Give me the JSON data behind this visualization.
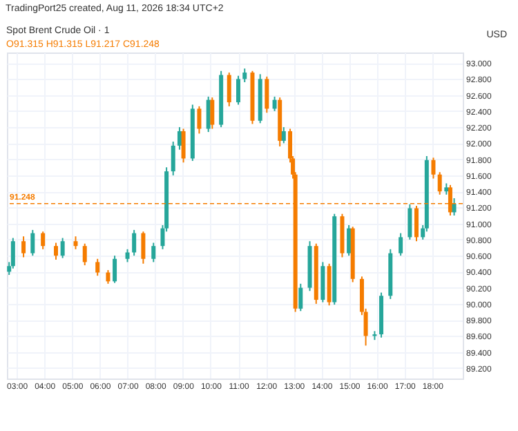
{
  "chart_data": {
    "type": "candlestick",
    "title": "Spot Brent Crude Oil · 1",
    "subtitle": "O91.315 H91.315 L91.217 C91.248",
    "annotations": [
      "TradingPort25 created, Aug 11, 2026 18:34 UTC+2",
      "USD"
    ],
    "x": [
      2.73,
      2.87,
      3.25,
      3.58,
      3.95,
      4.42,
      4.66,
      5.13,
      5.46,
      5.92,
      6.3,
      6.54,
      7.0,
      7.24,
      7.57,
      7.94,
      8.27,
      8.41,
      8.65,
      8.88,
      9.02,
      9.35,
      9.59,
      9.92,
      10.06,
      10.38,
      10.67,
      11.0,
      11.23,
      11.51,
      11.79,
      12.03,
      12.31,
      12.5,
      12.64,
      12.87,
      12.97,
      13.06,
      13.25,
      13.58,
      13.81,
      14.05,
      14.28,
      14.47,
      14.75,
      14.99,
      15.13,
      15.46,
      15.6,
      15.92,
      16.16,
      16.49,
      16.86,
      17.19,
      17.43,
      17.66,
      17.8,
      18.04,
      18.27,
      18.51,
      18.65,
      18.79
    ],
    "ohlc": [
      [
        90.4,
        90.52,
        90.36,
        90.47
      ],
      [
        90.47,
        90.82,
        90.44,
        90.78
      ],
      [
        90.78,
        90.84,
        90.58,
        90.63
      ],
      [
        90.63,
        90.92,
        90.6,
        90.88
      ],
      [
        90.88,
        90.9,
        90.68,
        90.72
      ],
      [
        90.72,
        90.76,
        90.55,
        90.6
      ],
      [
        90.6,
        90.82,
        90.57,
        90.78
      ],
      [
        90.78,
        90.84,
        90.68,
        90.72
      ],
      [
        90.72,
        90.75,
        90.48,
        90.52
      ],
      [
        90.52,
        90.56,
        90.35,
        90.39
      ],
      [
        90.39,
        90.42,
        90.25,
        90.28
      ],
      [
        90.28,
        90.6,
        90.26,
        90.56
      ],
      [
        90.56,
        90.68,
        90.52,
        90.64
      ],
      [
        90.64,
        90.92,
        90.6,
        90.88
      ],
      [
        90.88,
        90.9,
        90.5,
        90.56
      ],
      [
        90.56,
        90.76,
        90.52,
        90.72
      ],
      [
        90.72,
        90.98,
        90.68,
        90.94
      ],
      [
        90.94,
        91.7,
        90.9,
        91.65
      ],
      [
        91.65,
        92.02,
        91.6,
        91.97
      ],
      [
        91.97,
        92.2,
        91.92,
        92.15
      ],
      [
        92.15,
        92.18,
        91.76,
        91.81
      ],
      [
        91.81,
        92.48,
        91.78,
        92.43
      ],
      [
        92.43,
        92.46,
        92.12,
        92.18
      ],
      [
        92.18,
        92.58,
        92.14,
        92.54
      ],
      [
        92.54,
        92.57,
        92.18,
        92.23
      ],
      [
        92.23,
        92.9,
        92.2,
        92.85
      ],
      [
        92.85,
        92.88,
        92.46,
        92.51
      ],
      [
        92.51,
        92.84,
        92.48,
        92.8
      ],
      [
        92.8,
        92.93,
        92.76,
        92.88
      ],
      [
        92.88,
        92.9,
        92.24,
        92.28
      ],
      [
        92.28,
        92.86,
        92.25,
        92.8
      ],
      [
        92.8,
        92.83,
        92.38,
        92.43
      ],
      [
        92.43,
        92.58,
        92.4,
        92.54
      ],
      [
        92.54,
        92.57,
        91.96,
        92.03
      ],
      [
        92.03,
        92.2,
        92.0,
        92.15
      ],
      [
        92.15,
        92.18,
        91.76,
        91.81
      ],
      [
        91.81,
        91.84,
        91.56,
        91.61
      ],
      [
        91.61,
        91.64,
        89.9,
        89.94
      ],
      [
        89.94,
        90.25,
        89.91,
        90.2
      ],
      [
        90.2,
        90.78,
        90.16,
        90.72
      ],
      [
        90.72,
        90.75,
        90.0,
        90.05
      ],
      [
        90.05,
        90.52,
        90.02,
        90.47
      ],
      [
        90.47,
        90.5,
        89.98,
        90.02
      ],
      [
        90.02,
        91.12,
        89.99,
        91.09
      ],
      [
        91.09,
        91.12,
        90.58,
        90.63
      ],
      [
        90.63,
        90.98,
        90.6,
        90.94
      ],
      [
        90.94,
        90.96,
        90.27,
        90.31
      ],
      [
        90.31,
        90.34,
        89.86,
        89.9
      ],
      [
        89.9,
        89.94,
        89.48,
        89.6
      ],
      [
        89.6,
        89.66,
        89.55,
        89.62
      ],
      [
        89.62,
        90.14,
        89.58,
        90.1
      ],
      [
        90.1,
        90.68,
        90.06,
        90.63
      ],
      [
        90.63,
        90.88,
        90.6,
        90.83
      ],
      [
        90.83,
        91.24,
        90.8,
        91.19
      ],
      [
        91.19,
        91.22,
        90.78,
        90.83
      ],
      [
        90.83,
        90.98,
        90.8,
        90.94
      ],
      [
        90.94,
        91.84,
        90.9,
        91.79
      ],
      [
        91.79,
        91.82,
        91.56,
        91.61
      ],
      [
        91.61,
        91.64,
        91.36,
        91.4
      ],
      [
        91.4,
        91.5,
        91.36,
        91.45
      ],
      [
        91.45,
        91.48,
        91.1,
        91.14
      ],
      [
        91.14,
        91.315,
        91.1,
        91.248
      ]
    ],
    "colors": [
      "#26a69a",
      "#26a69a",
      "#f57c00",
      "#26a69a",
      "#f57c00",
      "#f57c00",
      "#26a69a",
      "#f57c00",
      "#f57c00",
      "#f57c00",
      "#f57c00",
      "#26a69a",
      "#26a69a",
      "#26a69a",
      "#f57c00",
      "#26a69a",
      "#26a69a",
      "#26a69a",
      "#26a69a",
      "#26a69a",
      "#f57c00",
      "#26a69a",
      "#f57c00",
      "#26a69a",
      "#f57c00",
      "#26a69a",
      "#f57c00",
      "#26a69a",
      "#26a69a",
      "#f57c00",
      "#26a69a",
      "#f57c00",
      "#26a69a",
      "#f57c00",
      "#26a69a",
      "#f57c00",
      "#f57c00",
      "#f57c00",
      "#26a69a",
      "#26a69a",
      "#f57c00",
      "#26a69a",
      "#f57c00",
      "#26a69a",
      "#f57c00",
      "#26a69a",
      "#f57c00",
      "#f57c00",
      "#f57c00",
      "#26a69a",
      "#26a69a",
      "#26a69a",
      "#26a69a",
      "#26a69a",
      "#f57c00",
      "#26a69a",
      "#26a69a",
      "#f57c00",
      "#f57c00",
      "#26a69a",
      "#f57c00",
      "#26a69a"
    ],
    "xlim": [
      2.65,
      19.1
    ],
    "xticks": [
      {
        "value": 3,
        "label": "03:00"
      },
      {
        "value": 4,
        "label": "04:00"
      },
      {
        "value": 5,
        "label": "05:00"
      },
      {
        "value": 6,
        "label": "06:00"
      },
      {
        "value": 7,
        "label": "07:00"
      },
      {
        "value": 8,
        "label": "08:00"
      },
      {
        "value": 9,
        "label": "09:00"
      },
      {
        "value": 10,
        "label": "10:00"
      },
      {
        "value": 11,
        "label": "11:00"
      },
      {
        "value": 12,
        "label": "12:00"
      },
      {
        "value": 13,
        "label": "13:00"
      },
      {
        "value": 14,
        "label": "14:00"
      },
      {
        "value": 15,
        "label": "15:00"
      },
      {
        "value": 16,
        "label": "16:00"
      },
      {
        "value": 17,
        "label": "17:00"
      },
      {
        "value": 18,
        "label": "18:00"
      }
    ],
    "ylim": [
      89.07,
      93.13
    ],
    "yticks": [
      {
        "value": 89.2,
        "label": "89.200"
      },
      {
        "value": 89.4,
        "label": "89.400"
      },
      {
        "value": 89.6,
        "label": "89.600"
      },
      {
        "value": 89.8,
        "label": "89.800"
      },
      {
        "value": 90.0,
        "label": "90.000"
      },
      {
        "value": 90.2,
        "label": "90.200"
      },
      {
        "value": 90.4,
        "label": "90.400"
      },
      {
        "value": 90.6,
        "label": "90.600"
      },
      {
        "value": 90.8,
        "label": "90.800"
      },
      {
        "value": 91.0,
        "label": "91.000"
      },
      {
        "value": 91.2,
        "label": "91.200"
      },
      {
        "value": 91.4,
        "label": "91.400"
      },
      {
        "value": 91.6,
        "label": "91.600"
      },
      {
        "value": 91.8,
        "label": "91.800"
      },
      {
        "value": 92.0,
        "label": "92.000"
      },
      {
        "value": 92.2,
        "label": "92.200"
      },
      {
        "value": 92.4,
        "label": "92.400"
      },
      {
        "value": 92.6,
        "label": "92.600"
      },
      {
        "value": 92.8,
        "label": "92.800"
      },
      {
        "value": 93.0,
        "label": "93.000"
      }
    ],
    "grid": true,
    "ref_lines": [
      {
        "axis": "y",
        "value": 91.248,
        "label": "91.248",
        "color": "#f57c00",
        "line_style": "dashed"
      }
    ]
  }
}
